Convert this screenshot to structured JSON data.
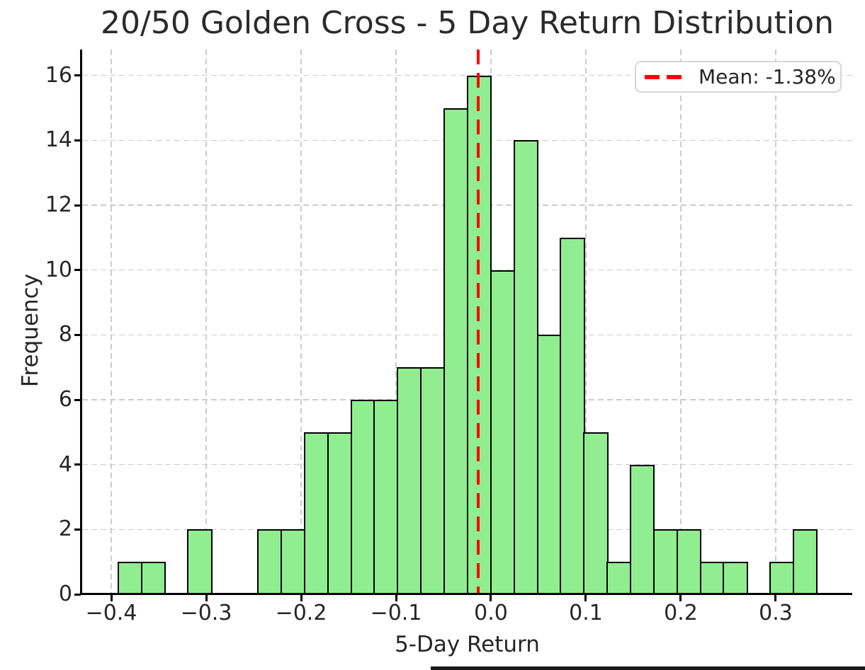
{
  "figure": {
    "title": "20/50 Golden Cross - 5 Day Return Distribution",
    "xlabel": "5-Day Return",
    "ylabel": "Frequency"
  },
  "chart_data": {
    "type": "bar",
    "subtype": "histogram",
    "title": "20/50 Golden Cross - 5 Day Return Distribution",
    "xlabel": "5-Day Return",
    "ylabel": "Frequency",
    "bin_edges": [
      -0.3925,
      -0.368,
      -0.3434,
      -0.3189,
      -0.2944,
      -0.2699,
      -0.2453,
      -0.2208,
      -0.1963,
      -0.1717,
      -0.1472,
      -0.1227,
      -0.0981,
      -0.0736,
      -0.0491,
      -0.0245,
      0.0,
      0.0245,
      0.0491,
      0.0736,
      0.0981,
      0.1227,
      0.1472,
      0.1717,
      0.1963,
      0.2208,
      0.2453,
      0.2699,
      0.2944,
      0.3189,
      0.3434
    ],
    "counts": [
      1,
      1,
      0,
      2,
      0,
      0,
      2,
      2,
      5,
      5,
      6,
      6,
      7,
      7,
      15,
      16,
      10,
      14,
      8,
      11,
      5,
      1,
      4,
      2,
      2,
      1,
      1,
      0,
      1,
      2
    ],
    "total_observations": 137,
    "mean_line": {
      "value": -0.0138,
      "label": "Mean: -1.38%",
      "color": "#ff0000",
      "linestyle": "dashed"
    },
    "bar_style": {
      "fill": "#90EE90",
      "edge": "#000000"
    },
    "x_ticks": {
      "values": [
        -0.4,
        -0.3,
        -0.2,
        -0.1,
        0.0,
        0.1,
        0.2,
        0.3
      ],
      "labels": [
        "−0.4",
        "−0.3",
        "−0.2",
        "−0.1",
        "0.0",
        "0.1",
        "0.2",
        "0.3"
      ]
    },
    "y_ticks": {
      "values": [
        0,
        2,
        4,
        6,
        8,
        10,
        12,
        14,
        16
      ],
      "labels": [
        "0",
        "2",
        "4",
        "6",
        "8",
        "10",
        "12",
        "14",
        "16"
      ]
    },
    "xlim": [
      -0.4306,
      0.3806
    ],
    "ylim": [
      0,
      16.8
    ],
    "grid": {
      "visible": true,
      "linestyle": "dashed",
      "color": "#cccccc"
    },
    "legend": {
      "position": "upper right",
      "entries": [
        {
          "label": "Mean: -1.38%",
          "color": "#ff0000",
          "linestyle": "dashed"
        }
      ]
    }
  }
}
